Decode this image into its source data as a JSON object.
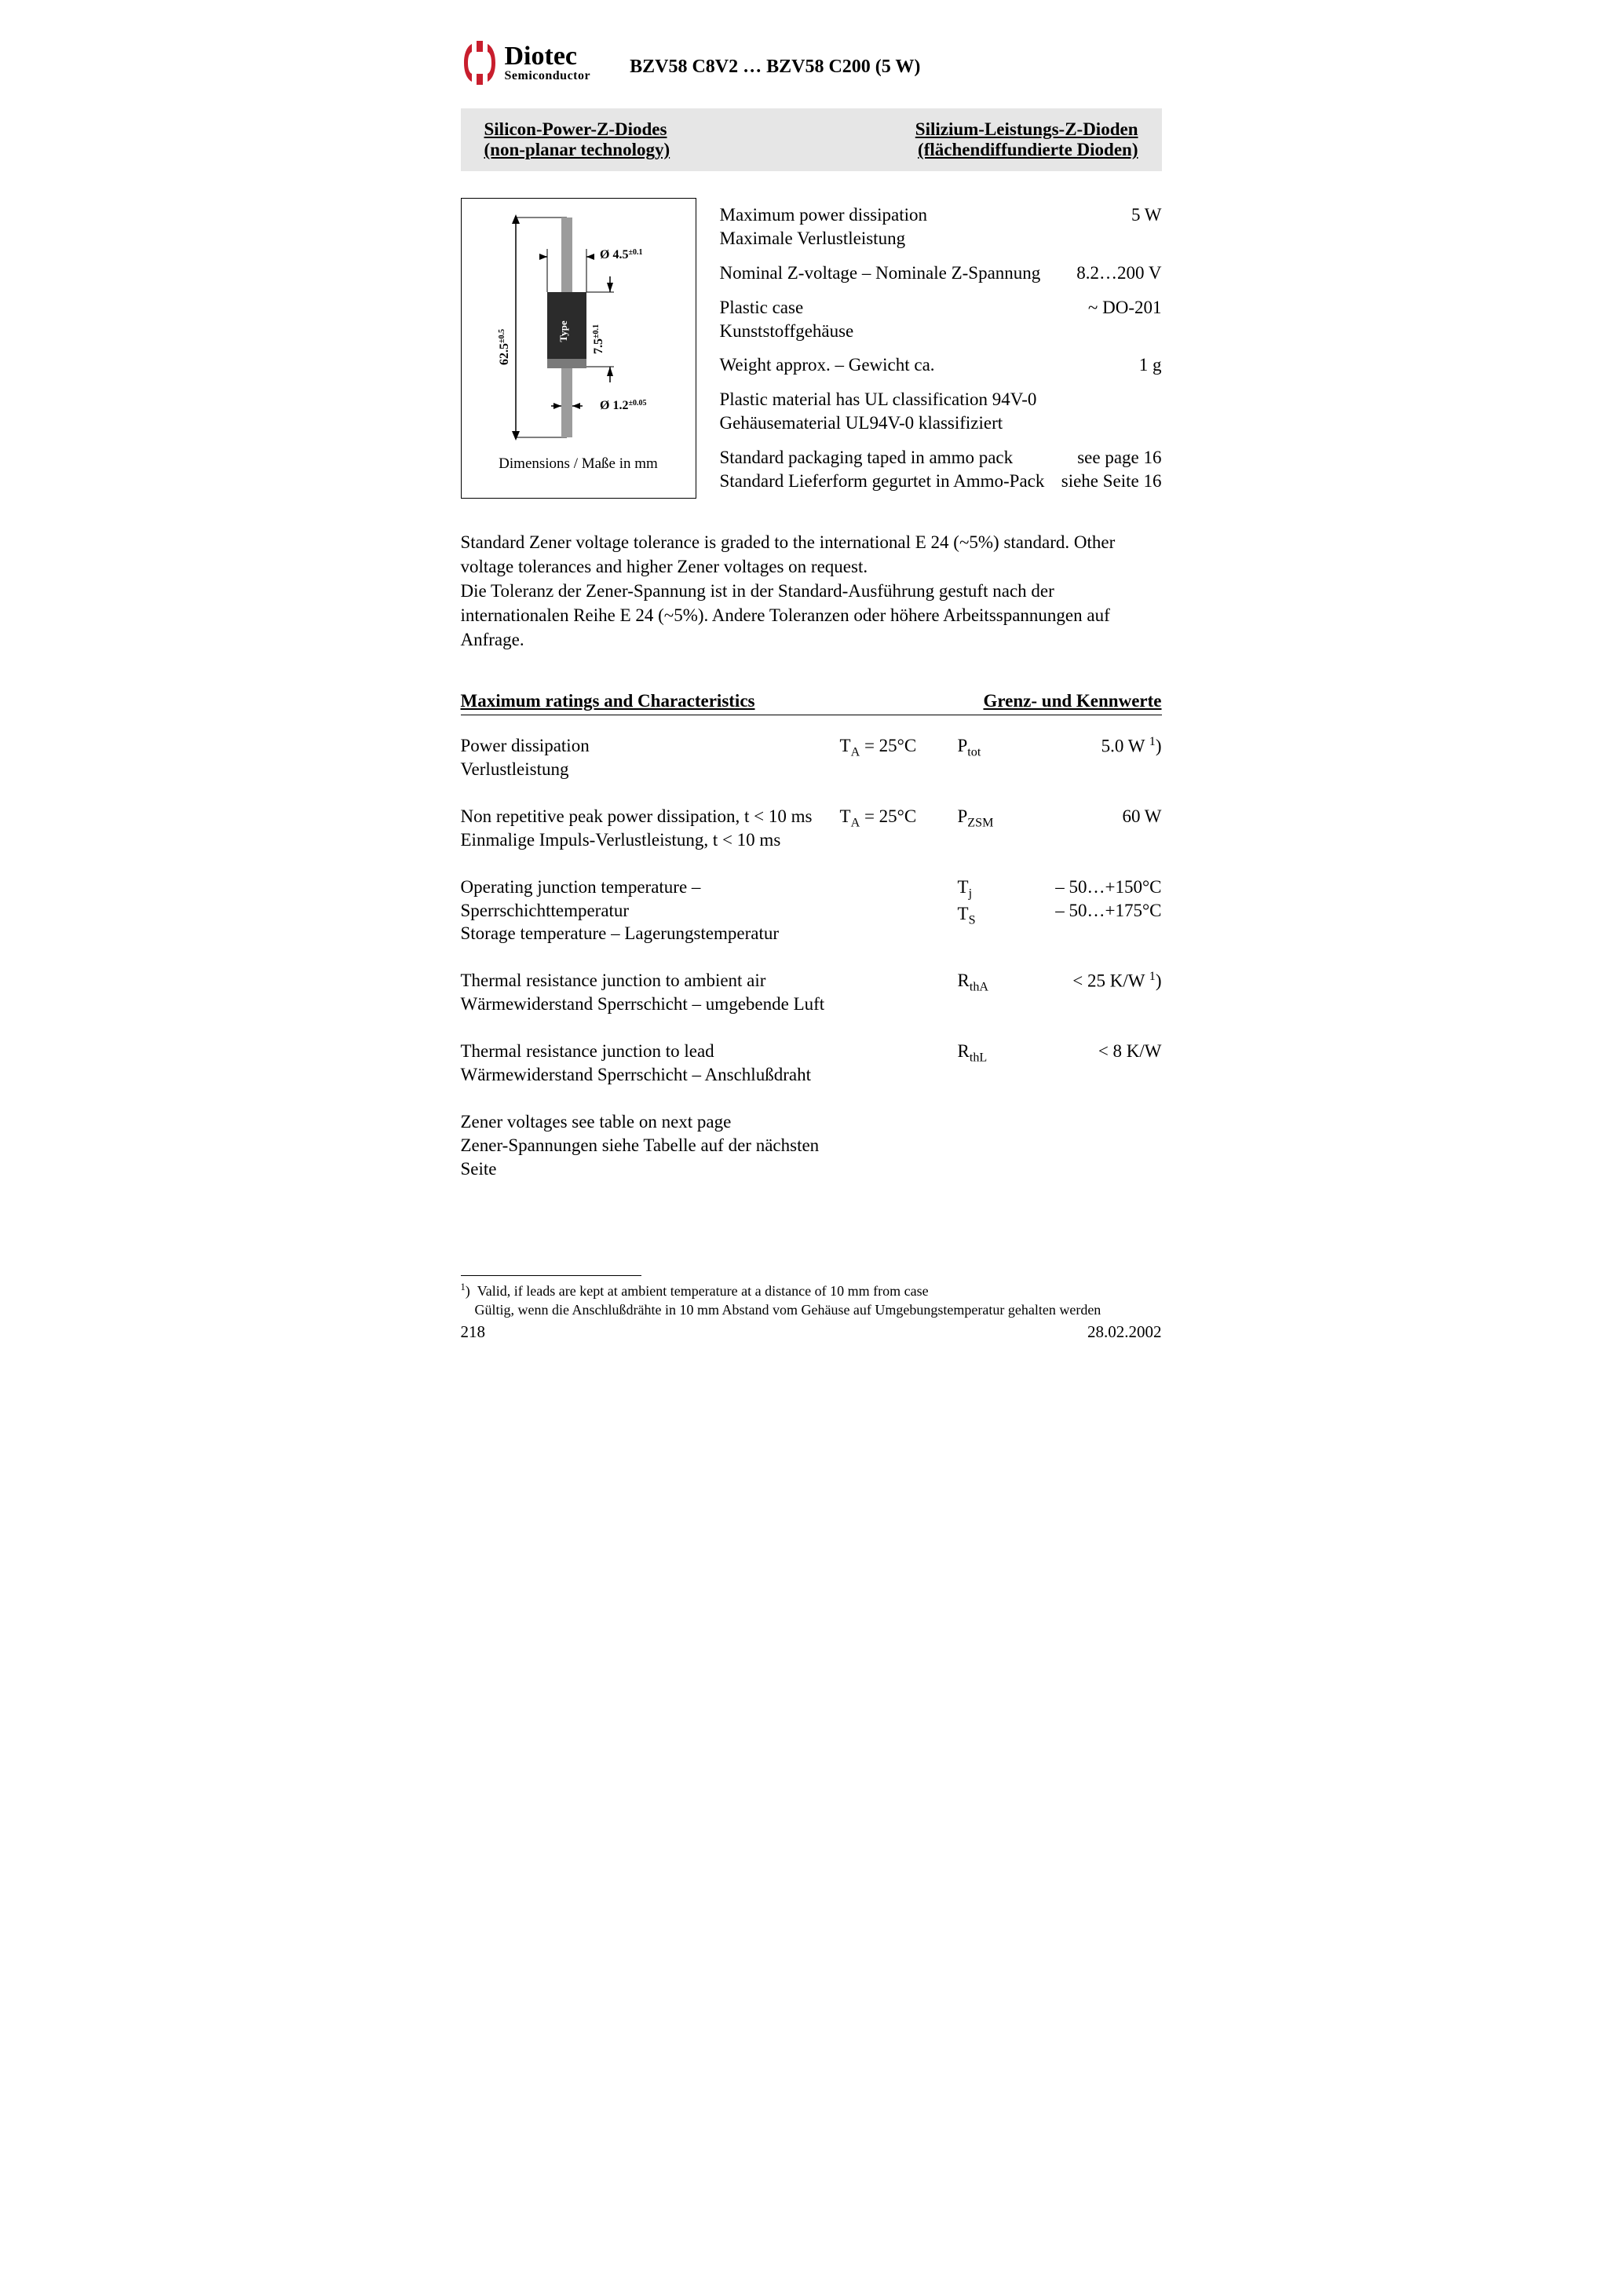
{
  "logo": {
    "brand": "Diotec",
    "sub": "Semiconductor",
    "color": "#c81e2d"
  },
  "part_title": "BZV58 C8V2 … BZV58 C200 (5 W)",
  "band": {
    "left_line1": "Silicon-Power-Z-Diodes",
    "left_line2": "(non-planar technology)",
    "right_line1": "Silizium-Leistungs-Z-Dioden",
    "right_line2": "(flächendiffundierte Dioden)"
  },
  "diagram": {
    "caption": "Dimensions / Maße in mm",
    "dim_length": "62.5",
    "dim_length_tol": "±0.5",
    "dim_body_dia": "Ø 4.5",
    "dim_body_dia_tol": "±0.1",
    "dim_body_len": "7.5",
    "dim_body_len_tol": "±0.1",
    "dim_lead_dia": "Ø 1.2",
    "dim_lead_dia_tol": "±0.05",
    "body_color": "#2b2b2b",
    "lead_color": "#9c9c9c",
    "band_color": "#7a7a7a",
    "type_label": "Type"
  },
  "specs": [
    {
      "label_en": "Maximum power dissipation",
      "label_de": "Maximale Verlustleistung",
      "value": "5 W"
    },
    {
      "label_en": "Nominal Z-voltage – Nominale Z-Spannung",
      "label_de": "",
      "value": "8.2…200 V"
    },
    {
      "label_en": "Plastic case",
      "label_de": "Kunststoffgehäuse",
      "value": "~ DO-201"
    },
    {
      "label_en": "Weight approx. – Gewicht ca.",
      "label_de": "",
      "value": "1 g"
    },
    {
      "label_en": "Plastic material has UL classification 94V-0",
      "label_de": "Gehäusematerial UL94V-0 klassifiziert",
      "value": ""
    },
    {
      "label_en": "Standard packaging taped in ammo pack",
      "label_de": "Standard Lieferform gegurtet in Ammo-Pack",
      "value": "see page 16",
      "value2": "siehe Seite 16"
    }
  ],
  "bodytext": "Standard Zener voltage tolerance is graded to the international E 24 (~5%) standard. Other voltage tolerances and higher Zener voltages on request.\nDie Toleranz der Zener-Spannung ist in der Standard-Ausführung gestuft nach der internationalen Reihe E 24 (~5%). Andere Toleranzen oder höhere Arbeitsspannungen auf Anfrage.",
  "ratings_header": {
    "left": "Maximum ratings and Characteristics",
    "right": "Grenz- und Kennwerte"
  },
  "ratings": [
    {
      "desc_en": "Power dissipation",
      "desc_de": "Verlustleistung",
      "cond_html": "T<sub>A</sub> = 25°C",
      "sym_html": "P<sub>tot</sub>",
      "val_html": "5.0 W <sup>1</sup>)"
    },
    {
      "desc_en": "Non repetitive peak power dissipation, t < 10 ms",
      "desc_de": "Einmalige Impuls-Verlustleistung, t < 10 ms",
      "cond_html": "T<sub>A</sub> = 25°C",
      "sym_html": "P<sub>ZSM</sub>",
      "val_html": "60 W"
    },
    {
      "desc_en": "Operating junction temperature – Sperrschichttemperatur",
      "desc_de": "Storage temperature – Lagerungstemperatur",
      "cond_html": "",
      "sym_html": "T<sub>j</sub><br>T<sub>S</sub>",
      "val_html": "– 50…+150°C<br>– 50…+175°C"
    },
    {
      "desc_en": "Thermal resistance junction to ambient air",
      "desc_de": "Wärmewiderstand Sperrschicht – umgebende Luft",
      "cond_html": "",
      "sym_html": "R<sub>thA</sub>",
      "val_html": "&lt; 25 K/W <sup>1</sup>)"
    },
    {
      "desc_en": "Thermal resistance junction to lead",
      "desc_de": "Wärmewiderstand Sperrschicht – Anschlußdraht",
      "cond_html": "",
      "sym_html": "R<sub>thL</sub>",
      "val_html": "&lt; 8 K/W"
    },
    {
      "desc_en": "Zener voltages see table on next page",
      "desc_de": "Zener-Spannungen siehe Tabelle auf der nächsten Seite",
      "cond_html": "",
      "sym_html": "",
      "val_html": ""
    }
  ],
  "footnote_marker": "1",
  "footnote_en": "Valid, if leads are kept at ambient temperature at a distance of 10 mm from case",
  "footnote_de": "Gültig, wenn die Anschlußdrähte in 10 mm Abstand vom Gehäuse auf Umgebungstemperatur gehalten werden",
  "footer": {
    "page": "218",
    "date": "28.02.2002"
  }
}
